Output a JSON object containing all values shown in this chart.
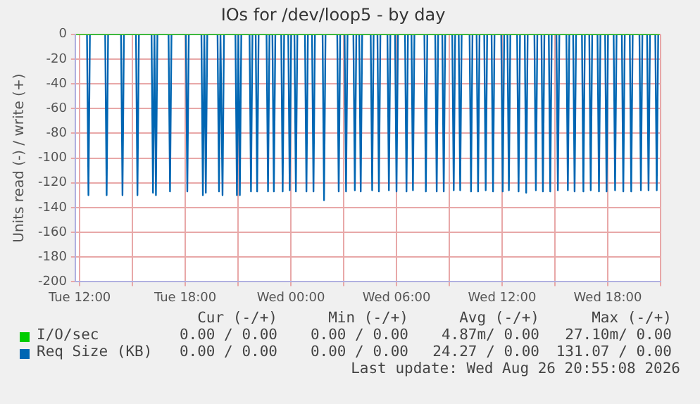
{
  "chart_data": {
    "type": "line",
    "title": "IOs for /dev/loop5 - by day",
    "ylabel": "Units read (-) / write (+)",
    "xlim": [
      "2026-08-25T11:45",
      "2026-08-26T21:00"
    ],
    "xticks": [
      {
        "value": "2026-08-25T12:00",
        "label": "Tue 12:00"
      },
      {
        "value": "2026-08-25T15:00",
        "label": null
      },
      {
        "value": "2026-08-25T18:00",
        "label": "Tue 18:00"
      },
      {
        "value": "2026-08-25T21:00",
        "label": null
      },
      {
        "value": "2026-08-26T00:00",
        "label": "Wed 00:00"
      },
      {
        "value": "2026-08-26T03:00",
        "label": null
      },
      {
        "value": "2026-08-26T06:00",
        "label": "Wed 06:00"
      },
      {
        "value": "2026-08-26T09:00",
        "label": null
      },
      {
        "value": "2026-08-26T12:00",
        "label": "Wed 12:00"
      },
      {
        "value": "2026-08-26T15:00",
        "label": null
      },
      {
        "value": "2026-08-26T18:00",
        "label": "Wed 18:00"
      },
      {
        "value": "2026-08-26T21:00",
        "label": null
      }
    ],
    "ylim": [
      -200,
      0
    ],
    "yticks": [
      -200,
      -180,
      -160,
      -140,
      -120,
      -100,
      -80,
      -60,
      -40,
      -20,
      0
    ],
    "grid": true,
    "legend": "bottom",
    "marker": "none",
    "line_style": "solid",
    "series": [
      {
        "name": "I/O/sec",
        "color": "#00cc00",
        "x": [
          "2026-08-25T11:48",
          "2026-08-26T20:57"
        ],
        "values": [
          0,
          0
        ]
      },
      {
        "name": "Req Size (KB)",
        "color": "#0066b3",
        "x": [
          "2026-08-25T12:25",
          "2026-08-25T12:30",
          "2026-08-25T12:35",
          "2026-08-25T13:27",
          "2026-08-25T13:32",
          "2026-08-25T13:37",
          "2026-08-25T14:21",
          "2026-08-25T14:26",
          "2026-08-25T14:31",
          "2026-08-25T15:12",
          "2026-08-25T15:17",
          "2026-08-25T15:22",
          "2026-08-25T16:05",
          "2026-08-25T16:10",
          "2026-08-25T16:15",
          "2026-08-25T16:15",
          "2026-08-25T16:20",
          "2026-08-25T16:25",
          "2026-08-25T17:03",
          "2026-08-25T17:08",
          "2026-08-25T17:13",
          "2026-08-25T18:02",
          "2026-08-25T18:07",
          "2026-08-25T18:12",
          "2026-08-25T18:55",
          "2026-08-25T19:00",
          "2026-08-25T19:05",
          "2026-08-25T19:05",
          "2026-08-25T19:10",
          "2026-08-25T19:15",
          "2026-08-25T19:50",
          "2026-08-25T19:55",
          "2026-08-25T20:00",
          "2026-08-25T20:02",
          "2026-08-25T20:07",
          "2026-08-25T20:12",
          "2026-08-25T20:51",
          "2026-08-25T20:56",
          "2026-08-25T21:01",
          "2026-08-25T21:01",
          "2026-08-25T21:06",
          "2026-08-25T21:11",
          "2026-08-25T21:39",
          "2026-08-25T21:44",
          "2026-08-25T21:49",
          "2026-08-25T22:00",
          "2026-08-25T22:05",
          "2026-08-25T22:10",
          "2026-08-25T22:37",
          "2026-08-25T22:42",
          "2026-08-25T22:47",
          "2026-08-25T22:57",
          "2026-08-25T23:02",
          "2026-08-25T23:07",
          "2026-08-25T23:27",
          "2026-08-25T23:32",
          "2026-08-25T23:37",
          "2026-08-25T23:51",
          "2026-08-25T23:56",
          "2026-08-26T00:01",
          "2026-08-26T00:12",
          "2026-08-26T00:17",
          "2026-08-26T00:22",
          "2026-08-26T00:48",
          "2026-08-26T00:53",
          "2026-08-26T00:58",
          "2026-08-26T01:12",
          "2026-08-26T01:17",
          "2026-08-26T01:22",
          "2026-08-26T01:48",
          "2026-08-26T01:53",
          "2026-08-26T01:58",
          "2026-08-26T02:38",
          "2026-08-26T02:43",
          "2026-08-26T02:48",
          "2026-08-26T03:03",
          "2026-08-26T03:08",
          "2026-08-26T03:13",
          "2026-08-26T03:33",
          "2026-08-26T03:38",
          "2026-08-26T03:43",
          "2026-08-26T03:53",
          "2026-08-26T03:58",
          "2026-08-26T04:03",
          "2026-08-26T04:32",
          "2026-08-26T04:37",
          "2026-08-26T04:42",
          "2026-08-26T04:55",
          "2026-08-26T05:00",
          "2026-08-26T05:05",
          "2026-08-26T05:29",
          "2026-08-26T05:34",
          "2026-08-26T05:39",
          "2026-08-26T05:55",
          "2026-08-26T06:00",
          "2026-08-26T06:05",
          "2026-08-26T06:29",
          "2026-08-26T06:34",
          "2026-08-26T06:39",
          "2026-08-26T06:51",
          "2026-08-26T06:56",
          "2026-08-26T07:01",
          "2026-08-26T07:35",
          "2026-08-26T07:40",
          "2026-08-26T07:45",
          "2026-08-26T08:12",
          "2026-08-26T08:17",
          "2026-08-26T08:22",
          "2026-08-26T08:36",
          "2026-08-26T08:41",
          "2026-08-26T08:46",
          "2026-08-26T09:10",
          "2026-08-26T09:15",
          "2026-08-26T09:20",
          "2026-08-26T09:32",
          "2026-08-26T09:37",
          "2026-08-26T09:42",
          "2026-08-26T10:09",
          "2026-08-26T10:14",
          "2026-08-26T10:19",
          "2026-08-26T10:33",
          "2026-08-26T10:38",
          "2026-08-26T10:43",
          "2026-08-26T10:59",
          "2026-08-26T11:04",
          "2026-08-26T11:09",
          "2026-08-26T11:24",
          "2026-08-26T11:29",
          "2026-08-26T11:34",
          "2026-08-26T11:57",
          "2026-08-26T12:02",
          "2026-08-26T12:07",
          "2026-08-26T12:18",
          "2026-08-26T12:23",
          "2026-08-26T12:28",
          "2026-08-26T12:51",
          "2026-08-26T12:56",
          "2026-08-26T13:01",
          "2026-08-26T13:17",
          "2026-08-26T13:22",
          "2026-08-26T13:27",
          "2026-08-26T13:50",
          "2026-08-26T13:55",
          "2026-08-26T14:00",
          "2026-08-26T14:14",
          "2026-08-26T14:19",
          "2026-08-26T14:24",
          "2026-08-26T14:39",
          "2026-08-26T14:44",
          "2026-08-26T14:49",
          "2026-08-26T15:05",
          "2026-08-26T15:10",
          "2026-08-26T15:15",
          "2026-08-26T15:39",
          "2026-08-26T15:44",
          "2026-08-26T15:49",
          "2026-08-26T16:02",
          "2026-08-26T16:07",
          "2026-08-26T16:12",
          "2026-08-26T16:32",
          "2026-08-26T16:37",
          "2026-08-26T16:42",
          "2026-08-26T16:57",
          "2026-08-26T17:02",
          "2026-08-26T17:07",
          "2026-08-26T17:25",
          "2026-08-26T17:30",
          "2026-08-26T17:35",
          "2026-08-26T17:51",
          "2026-08-26T17:56",
          "2026-08-26T18:01",
          "2026-08-26T18:20",
          "2026-08-26T18:25",
          "2026-08-26T18:30",
          "2026-08-26T18:48",
          "2026-08-26T18:53",
          "2026-08-26T18:58",
          "2026-08-26T19:15",
          "2026-08-26T19:20",
          "2026-08-26T19:25",
          "2026-08-26T19:48",
          "2026-08-26T19:53",
          "2026-08-26T19:58",
          "2026-08-26T20:14",
          "2026-08-26T20:19",
          "2026-08-26T20:24",
          "2026-08-26T20:42",
          "2026-08-26T20:47",
          "2026-08-26T20:52"
        ],
        "values": [
          0,
          -130,
          0,
          0,
          -130,
          0,
          0,
          -130,
          0,
          0,
          -130,
          0,
          0,
          -128,
          0,
          0,
          -130,
          0,
          0,
          -127,
          0,
          0,
          -127,
          0,
          0,
          -130,
          0,
          0,
          -128,
          0,
          0,
          -127,
          0,
          0,
          -130,
          0,
          0,
          -130,
          0,
          0,
          -130,
          0,
          0,
          -127,
          0,
          0,
          -127,
          0,
          0,
          -127,
          0,
          0,
          -127,
          0,
          0,
          -127,
          0,
          0,
          -126,
          0,
          0,
          -127,
          0,
          0,
          -127,
          0,
          0,
          -127,
          0,
          0,
          -134,
          0,
          0,
          -127,
          0,
          0,
          -127,
          0,
          0,
          -126,
          0,
          0,
          -127,
          0,
          0,
          -126,
          0,
          0,
          -127,
          0,
          0,
          -126,
          0,
          0,
          -127,
          0,
          0,
          -127,
          0,
          0,
          -126,
          0,
          0,
          -127,
          0,
          0,
          -127,
          0,
          0,
          -127,
          0,
          0,
          -126,
          0,
          0,
          -126,
          0,
          0,
          -127,
          0,
          0,
          -127,
          0,
          0,
          -126,
          0,
          0,
          -127,
          0,
          0,
          -127,
          0,
          0,
          -126,
          0,
          0,
          -127,
          0,
          0,
          -128,
          0,
          0,
          -126,
          0,
          0,
          -127,
          0,
          0,
          -127,
          0,
          0,
          -126,
          0,
          0,
          -126,
          0,
          0,
          -127,
          0,
          0,
          -127,
          0,
          0,
          -126,
          0,
          0,
          -127,
          0,
          0,
          -127,
          0,
          0,
          -126,
          0,
          0,
          -127,
          0,
          0,
          -127,
          0,
          0,
          -126,
          0,
          0,
          -126,
          0,
          0,
          -126,
          0
        ]
      }
    ],
    "annotations": [
      "Cur (-/+)",
      "Min (-/+)",
      "Avg (-/+)",
      "Max (-/+)",
      "0.00 / 0.00",
      "0.00 / 0.00",
      "4.87m/ 0.00",
      "27.10m/ 0.00",
      "0.00 / 0.00",
      "0.00 / 0.00",
      "24.27 / 0.00",
      "131.07 / 0.00",
      "Last update: Wed Aug 26 20:55:08 2026"
    ]
  }
}
